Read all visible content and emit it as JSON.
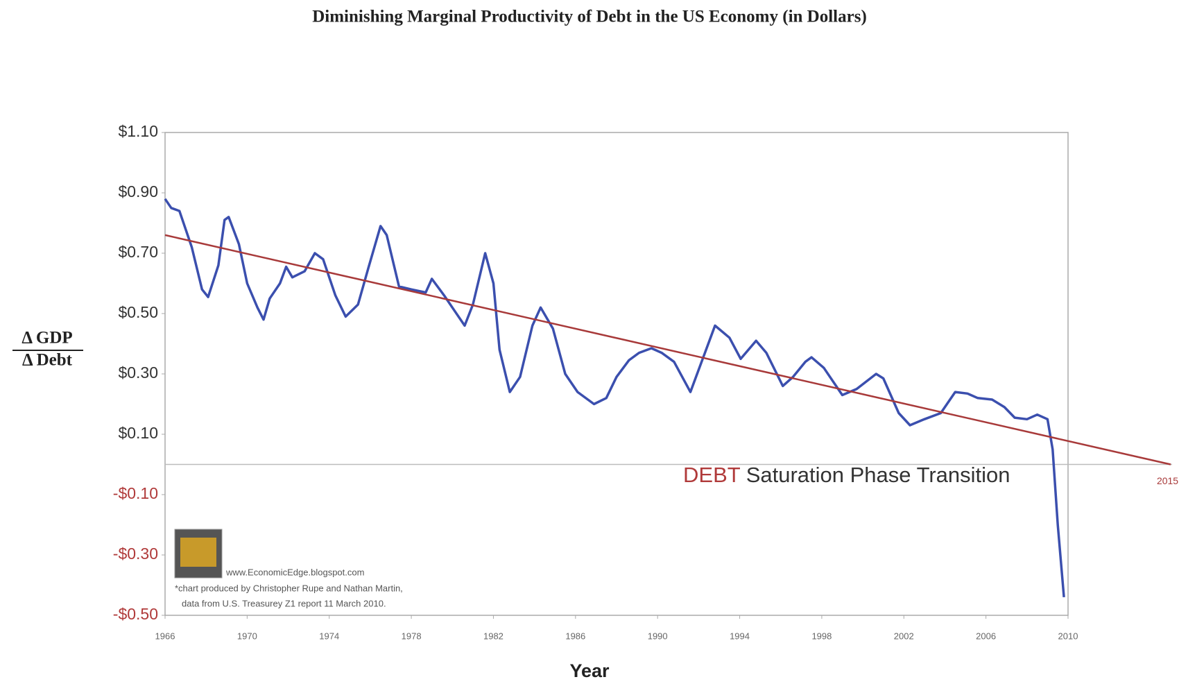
{
  "chart_data": {
    "type": "line",
    "title": "Diminishing Marginal Productivity of Debt in the US Economy  (in Dollars)",
    "y_label_numerator": "Δ GDP",
    "y_label_denominator": "Δ Debt",
    "x_label": "Year",
    "xlim": [
      1966,
      2010
    ],
    "xticks": [
      1966,
      1970,
      1974,
      1978,
      1982,
      1986,
      1990,
      1994,
      1998,
      2002,
      2006,
      2010
    ],
    "ylim": [
      -0.5,
      1.1
    ],
    "yticks": [
      {
        "value": -0.5,
        "label": "-$0.50"
      },
      {
        "value": -0.3,
        "label": "-$0.30"
      },
      {
        "value": -0.1,
        "label": "-$0.10"
      },
      {
        "value": 0.1,
        "label": "$0.10"
      },
      {
        "value": 0.3,
        "label": "$0.30"
      },
      {
        "value": 0.5,
        "label": "$0.50"
      },
      {
        "value": 0.7,
        "label": "$0.70"
      },
      {
        "value": 0.9,
        "label": "$0.90"
      },
      {
        "value": 1.1,
        "label": "$1.10"
      }
    ],
    "tick_colors": {
      "positive": "#333333",
      "negative": "#b03a3a"
    },
    "reference_line": 0,
    "grid": false,
    "series": [
      {
        "color": "#3b4fae",
        "x": [
          1966.0,
          1966.3,
          1966.7,
          1967.3,
          1967.8,
          1968.1,
          1968.6,
          1968.9,
          1969.1,
          1969.6,
          1970.0,
          1970.5,
          1970.8,
          1971.1,
          1971.6,
          1971.9,
          1972.2,
          1972.8,
          1973.3,
          1973.7,
          1974.3,
          1974.8,
          1975.4,
          1975.9,
          1976.5,
          1976.8,
          1977.4,
          1978.0,
          1978.7,
          1979.0,
          1979.6,
          1980.1,
          1980.6,
          1981.0,
          1981.6,
          1982.0,
          1982.3,
          1982.8,
          1983.3,
          1983.9,
          1984.3,
          1984.9,
          1985.5,
          1986.1,
          1986.9,
          1987.5,
          1988.0,
          1988.6,
          1989.1,
          1989.7,
          1990.2,
          1990.8,
          1991.6,
          1992.8,
          1993.5,
          1994.05,
          1994.8,
          1995.3,
          1996.1,
          1996.6,
          1997.2,
          1997.5,
          1998.1,
          1999.0,
          1999.7,
          2000.65,
          2001.0,
          2001.75,
          2002.3,
          2003.0,
          2003.8,
          2004.5,
          2005.1,
          2005.6,
          2006.3,
          2006.9,
          2007.4,
          2008.0,
          2008.5,
          2009.0,
          2009.25,
          2009.5,
          2009.8
        ],
        "values": [
          0.88,
          0.85,
          0.84,
          0.72,
          0.58,
          0.555,
          0.66,
          0.81,
          0.82,
          0.73,
          0.6,
          0.52,
          0.48,
          0.55,
          0.6,
          0.655,
          0.62,
          0.64,
          0.7,
          0.68,
          0.56,
          0.49,
          0.53,
          0.65,
          0.79,
          0.76,
          0.59,
          0.58,
          0.57,
          0.615,
          0.56,
          0.51,
          0.46,
          0.53,
          0.7,
          0.6,
          0.38,
          0.24,
          0.29,
          0.46,
          0.52,
          0.45,
          0.3,
          0.24,
          0.2,
          0.22,
          0.29,
          0.345,
          0.37,
          0.385,
          0.37,
          0.34,
          0.24,
          0.46,
          0.42,
          0.35,
          0.41,
          0.37,
          0.26,
          0.29,
          0.34,
          0.355,
          0.32,
          0.23,
          0.25,
          0.3,
          0.285,
          0.17,
          0.13,
          0.15,
          0.17,
          0.24,
          0.235,
          0.22,
          0.215,
          0.19,
          0.155,
          0.15,
          0.165,
          0.15,
          0.05,
          -0.2,
          -0.44
        ]
      },
      {
        "color": "#a83a3a",
        "x": [
          1966,
          2015
        ],
        "values": [
          0.76,
          0.0
        ]
      }
    ],
    "annotation_highlight": "DEBT",
    "annotation_text": "Saturation Phase Transition",
    "credit_url": "www.EconomicEdge.blogspot.com",
    "credit_line1": "*chart produced by Christopher Rupe and Nathan Martin,",
    "credit_line2": "data from U.S. Treasurey Z1 report 11 March 2010."
  }
}
